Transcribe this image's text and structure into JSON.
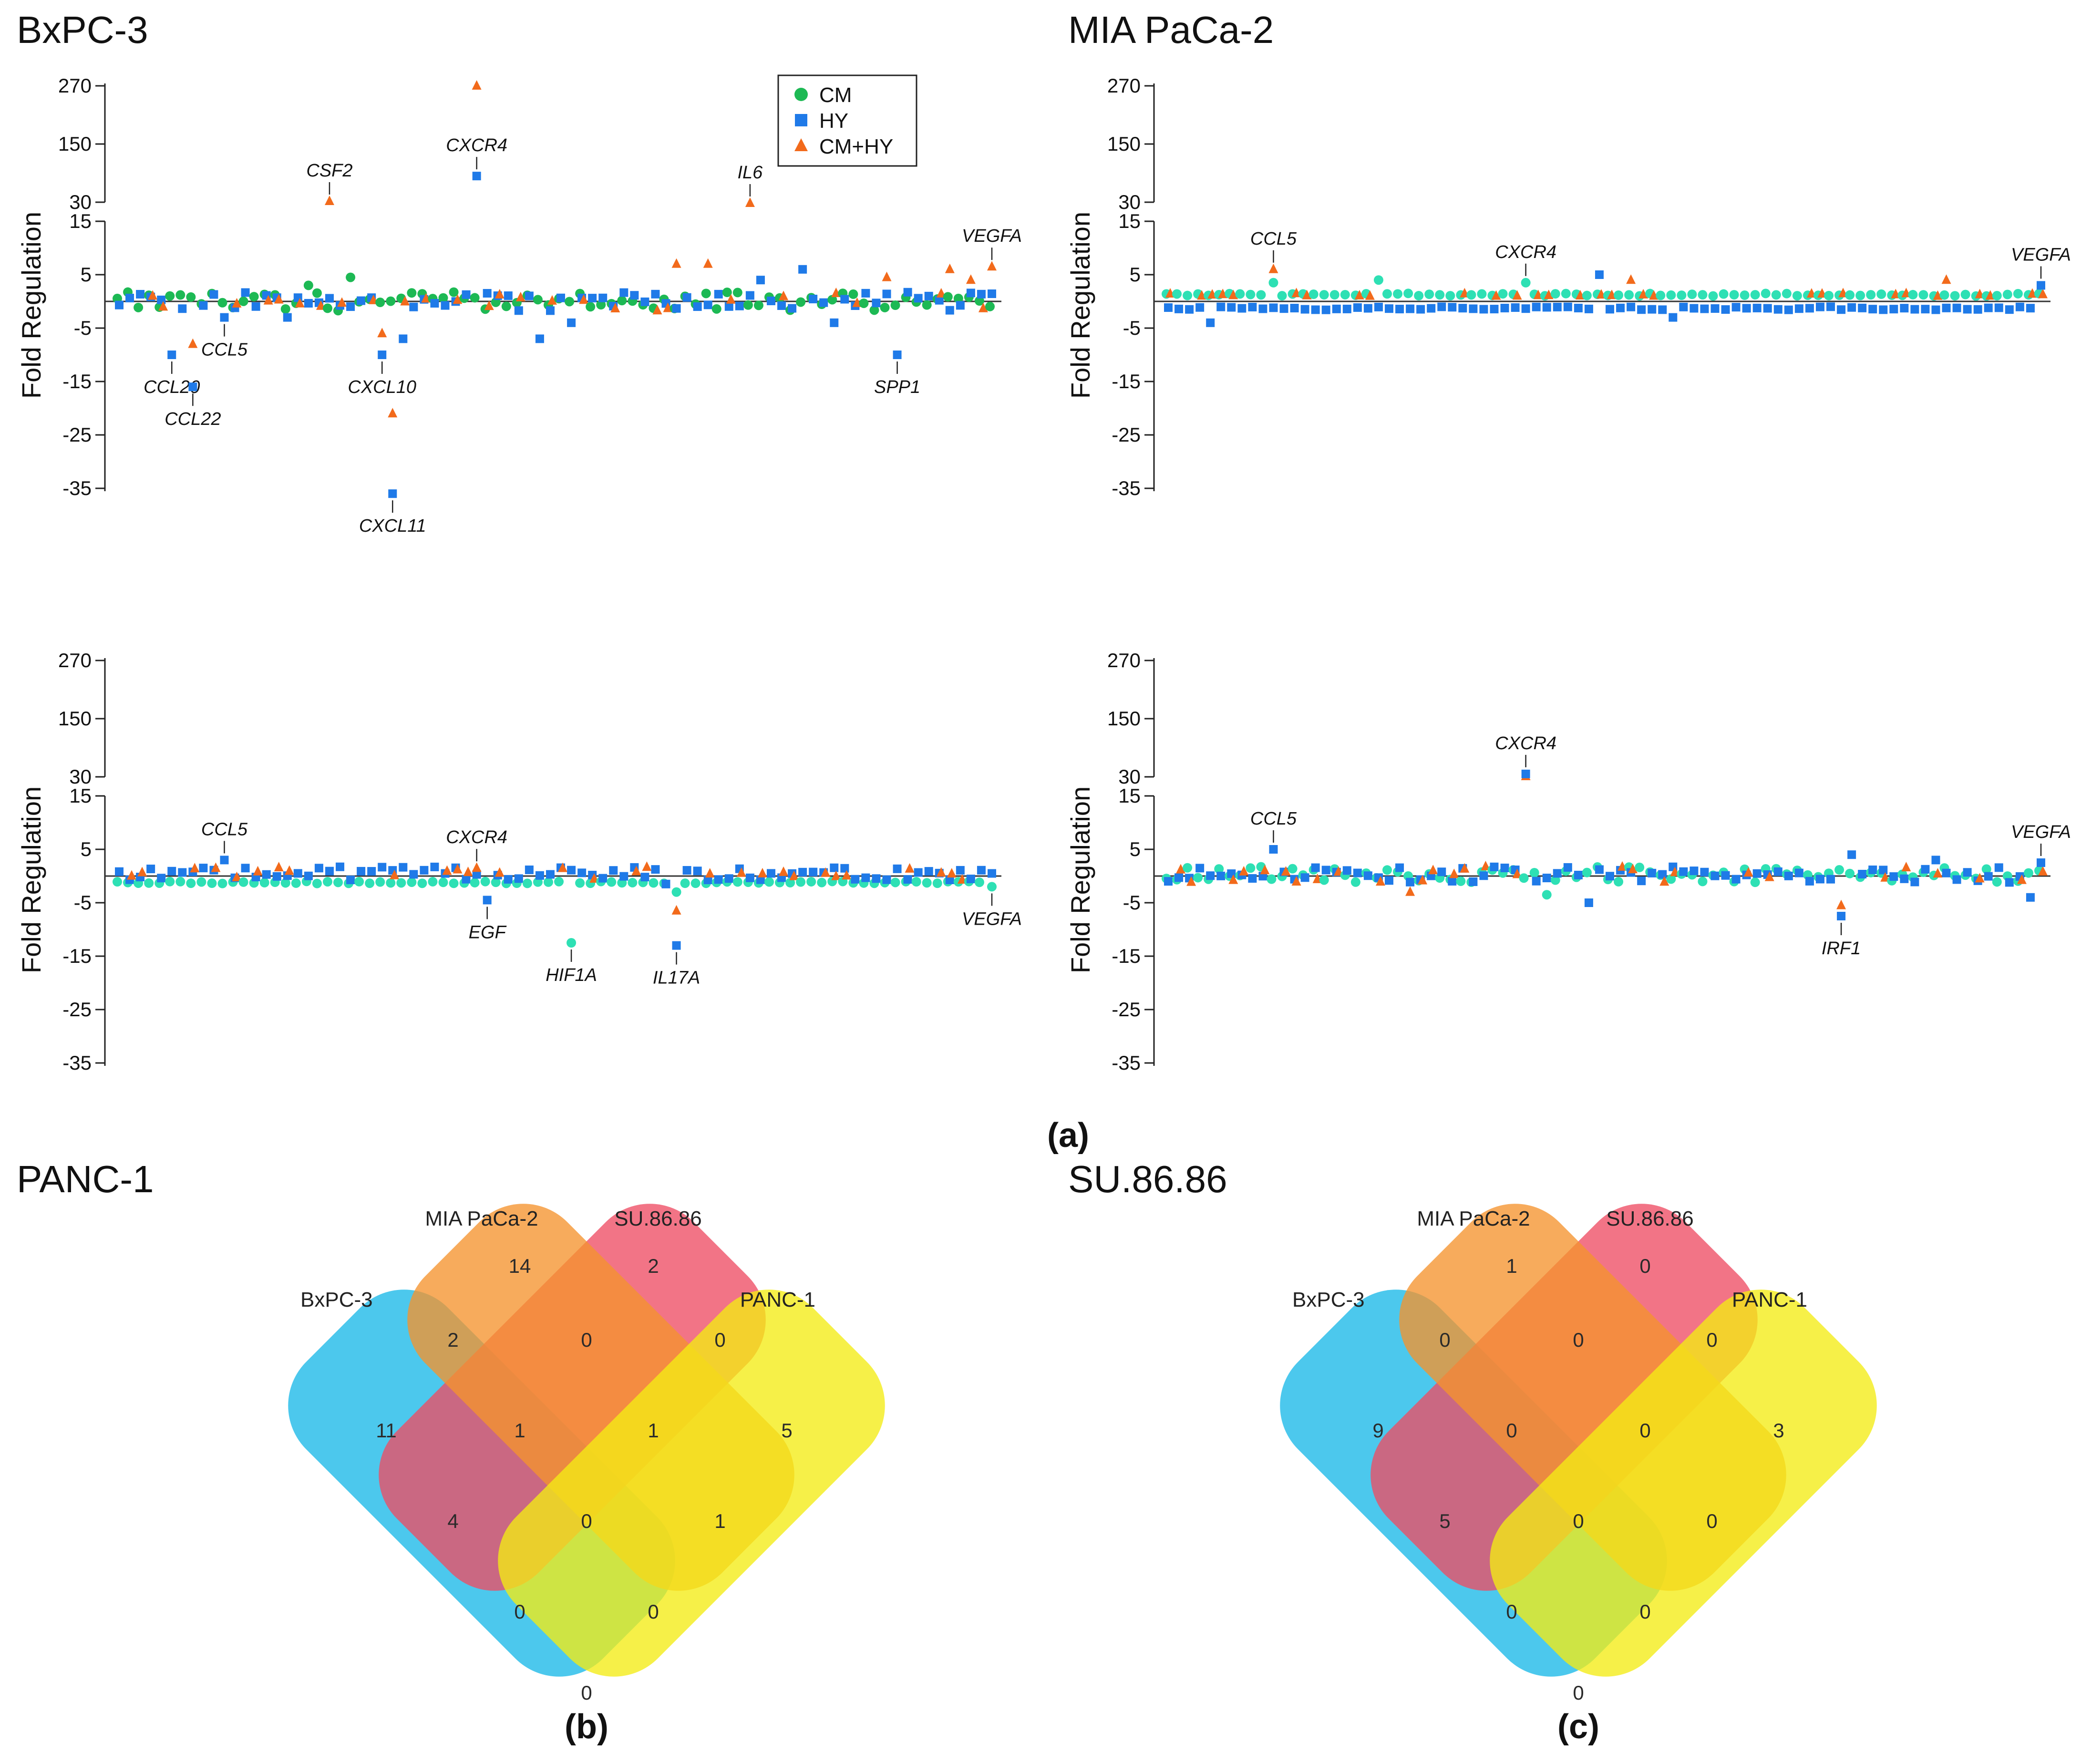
{
  "colors": {
    "CM": "#1db954",
    "CM_teal": "#2ee0b4",
    "HY": "#1f7ae8",
    "CMHY": "#f26a1b",
    "venn_BxPC-3": "#19b8e8",
    "venn_MIA PaCa-2": "#ee4d64",
    "venn_SU.86.86": "#f5932e",
    "venn_PANC-1": "#f3ec15"
  },
  "legend": {
    "items": [
      {
        "key": "CM",
        "label": "CM",
        "marker": "circle-icon"
      },
      {
        "key": "HY",
        "label": "HY",
        "marker": "square-icon"
      },
      {
        "key": "CMHY",
        "label": "CM+HY",
        "marker": "triangle-icon"
      }
    ]
  },
  "captions": {
    "a": "(a)",
    "b": "(b)",
    "c": "(c)"
  },
  "chart_data": [
    {
      "type": "scatter",
      "title": "BxPC-3",
      "ylabel": "Fold Regulation",
      "y_ticks": [
        "270",
        "150",
        "30",
        "15",
        "5",
        "-5",
        "-15",
        "-25",
        "-35"
      ],
      "ylim": [
        -35,
        270
      ],
      "n_genes": 84,
      "cm_color": "CM",
      "annotations": [
        {
          "gene": "CXCR4",
          "series": "HY",
          "x": 34,
          "y": 84,
          "label_pos": "above"
        },
        {
          "gene": "CSF2",
          "series": "CMHY",
          "x": 20,
          "y": 32,
          "label_pos": "above"
        },
        {
          "gene": "IL6",
          "series": "CMHY",
          "x": 60,
          "y": 28,
          "label_pos": "above"
        },
        {
          "gene": "VEGFA",
          "series": "CMHY",
          "x": 83,
          "y": 6.5,
          "label_pos": "above"
        },
        {
          "gene": "CCL20",
          "series": "HY",
          "x": 5,
          "y": -10,
          "label_pos": "below"
        },
        {
          "gene": "CCL22",
          "series": "HY",
          "x": 7,
          "y": -16,
          "label_pos": "below"
        },
        {
          "gene": "CCL5",
          "series": "HY",
          "x": 10,
          "y": -3,
          "label_pos": "below"
        },
        {
          "gene": "CXCL10",
          "series": "HY",
          "x": 25,
          "y": -10,
          "label_pos": "below"
        },
        {
          "gene": "CXCL11",
          "series": "HY",
          "x": 26,
          "y": -36,
          "label_pos": "below"
        },
        {
          "gene": "SPP1",
          "series": "HY",
          "x": 74,
          "y": -10,
          "label_pos": "below"
        }
      ],
      "outliers": [
        {
          "series": "CMHY",
          "x": 34,
          "y": 270
        },
        {
          "series": "CMHY",
          "x": 26,
          "y": -21
        },
        {
          "series": "CMHY",
          "x": 7,
          "y": -8
        },
        {
          "series": "CMHY",
          "x": 25,
          "y": -6
        },
        {
          "series": "CMHY",
          "x": 53,
          "y": 7
        },
        {
          "series": "CMHY",
          "x": 56,
          "y": 7
        },
        {
          "series": "CMHY",
          "x": 73,
          "y": 4.5
        },
        {
          "series": "CMHY",
          "x": 79,
          "y": 6
        },
        {
          "series": "CMHY",
          "x": 81,
          "y": 4
        },
        {
          "series": "HY",
          "x": 65,
          "y": 6
        },
        {
          "series": "HY",
          "x": 61,
          "y": 4
        },
        {
          "series": "HY",
          "x": 27,
          "y": -7
        },
        {
          "series": "HY",
          "x": 16,
          "y": -3
        },
        {
          "series": "HY",
          "x": 40,
          "y": -7
        },
        {
          "series": "HY",
          "x": 43,
          "y": -4
        },
        {
          "series": "HY",
          "x": 68,
          "y": -4
        },
        {
          "series": "CM",
          "x": 22,
          "y": 4.5
        },
        {
          "series": "CM",
          "x": 18,
          "y": 3
        }
      ]
    },
    {
      "type": "scatter",
      "title": "MIA PaCa-2",
      "ylabel": "Fold Regulation",
      "y_ticks": [
        "270",
        "150",
        "30",
        "15",
        "5",
        "-5",
        "-15",
        "-25",
        "-35"
      ],
      "ylim": [
        -35,
        270
      ],
      "n_genes": 84,
      "cm_color": "CM_teal",
      "annotations": [
        {
          "gene": "CCL5",
          "series": "CMHY",
          "x": 10,
          "y": 6,
          "label_pos": "above"
        },
        {
          "gene": "CXCR4",
          "series": "CM",
          "x": 34,
          "y": 3.5,
          "label_pos": "above"
        },
        {
          "gene": "VEGFA",
          "series": "HY",
          "x": 83,
          "y": 3,
          "label_pos": "above"
        }
      ],
      "outliers": [
        {
          "series": "HY",
          "x": 4,
          "y": -4
        },
        {
          "series": "HY",
          "x": 41,
          "y": 5
        },
        {
          "series": "HY",
          "x": 48,
          "y": -3
        },
        {
          "series": "CMHY",
          "x": 44,
          "y": 4
        },
        {
          "series": "CMHY",
          "x": 74,
          "y": 4
        },
        {
          "series": "CM",
          "x": 20,
          "y": 4
        },
        {
          "series": "CM",
          "x": 10,
          "y": 3.5
        }
      ]
    },
    {
      "type": "scatter",
      "title": "PANC-1",
      "ylabel": "Fold Regulation",
      "y_ticks": [
        "270",
        "150",
        "30",
        "15",
        "5",
        "-5",
        "-15",
        "-25",
        "-35"
      ],
      "ylim": [
        -35,
        270
      ],
      "n_genes": 84,
      "cm_color": "CM_teal",
      "annotations": [
        {
          "gene": "CCL5",
          "series": "HY",
          "x": 10,
          "y": 3,
          "label_pos": "above"
        },
        {
          "gene": "CXCR4",
          "series": "CMHY",
          "x": 34,
          "y": 1.5,
          "label_pos": "above"
        },
        {
          "gene": "EGF",
          "series": "HY",
          "x": 35,
          "y": -4.5,
          "label_pos": "below"
        },
        {
          "gene": "HIF1A",
          "series": "CM",
          "x": 43,
          "y": -12.5,
          "label_pos": "below"
        },
        {
          "gene": "IL17A",
          "series": "HY",
          "x": 53,
          "y": -13,
          "label_pos": "below"
        },
        {
          "gene": "VEGFA",
          "series": "CM",
          "x": 83,
          "y": -2,
          "label_pos": "below"
        }
      ],
      "outliers": [
        {
          "series": "CMHY",
          "x": 53,
          "y": -6.5
        },
        {
          "series": "CM",
          "x": 53,
          "y": -3
        },
        {
          "series": "HY",
          "x": 52,
          "y": -1.5
        }
      ]
    },
    {
      "type": "scatter",
      "title": "SU.86.86",
      "ylabel": "Fold Regulation",
      "y_ticks": [
        "270",
        "150",
        "30",
        "15",
        "5",
        "-5",
        "-15",
        "-25",
        "-35"
      ],
      "ylim": [
        -35,
        270
      ],
      "n_genes": 84,
      "cm_color": "CM_teal",
      "annotations": [
        {
          "gene": "CXCR4",
          "series": "HY",
          "x": 34,
          "y": 36,
          "label_pos": "above"
        },
        {
          "gene": "CCL5",
          "series": "HY",
          "x": 10,
          "y": 5,
          "label_pos": "above"
        },
        {
          "gene": "VEGFA",
          "series": "HY",
          "x": 83,
          "y": 2.5,
          "label_pos": "above"
        },
        {
          "gene": "IRF1",
          "series": "HY",
          "x": 64,
          "y": -7.5,
          "label_pos": "below"
        }
      ],
      "outliers": [
        {
          "series": "CMHY",
          "x": 34,
          "y": 31
        },
        {
          "series": "CMHY",
          "x": 64,
          "y": -5.5
        },
        {
          "series": "HY",
          "x": 40,
          "y": -5
        },
        {
          "series": "HY",
          "x": 82,
          "y": -4
        },
        {
          "series": "HY",
          "x": 65,
          "y": 4
        },
        {
          "series": "HY",
          "x": 73,
          "y": 3
        },
        {
          "series": "CMHY",
          "x": 23,
          "y": -3
        },
        {
          "series": "CM",
          "x": 36,
          "y": -3.5
        }
      ]
    },
    {
      "type": "venn",
      "sets": [
        "BxPC-3",
        "MIA PaCa-2",
        "SU.86.86",
        "PANC-1"
      ],
      "regions": {
        "BxPC-3": 11,
        "MIA PaCa-2": 14,
        "SU.86.86": 2,
        "PANC-1": 5,
        "BxPC-3&MIA PaCa-2": 2,
        "MIA PaCa-2&SU.86.86": 0,
        "SU.86.86&PANC-1": 0,
        "BxPC-3&MIA PaCa-2&SU.86.86": 1,
        "MIA PaCa-2&SU.86.86&PANC-1": 1,
        "BxPC-3&SU.86.86": 4,
        "all": 0,
        "MIA PaCa-2&PANC-1": 1,
        "BxPC-3&SU.86.86&PANC-1": 0,
        "BxPC-3&MIA PaCa-2&PANC-1": 0,
        "BxPC-3&PANC-1": 0
      }
    },
    {
      "type": "venn",
      "sets": [
        "BxPC-3",
        "MIA PaCa-2",
        "SU.86.86",
        "PANC-1"
      ],
      "regions": {
        "BxPC-3": 9,
        "MIA PaCa-2": 1,
        "SU.86.86": 0,
        "PANC-1": 3,
        "BxPC-3&MIA PaCa-2": 0,
        "MIA PaCa-2&SU.86.86": 0,
        "SU.86.86&PANC-1": 0,
        "BxPC-3&MIA PaCa-2&SU.86.86": 0,
        "MIA PaCa-2&SU.86.86&PANC-1": 0,
        "BxPC-3&SU.86.86": 5,
        "all": 0,
        "MIA PaCa-2&PANC-1": 0,
        "BxPC-3&SU.86.86&PANC-1": 0,
        "BxPC-3&MIA PaCa-2&PANC-1": 0,
        "BxPC-3&PANC-1": 0
      }
    }
  ]
}
